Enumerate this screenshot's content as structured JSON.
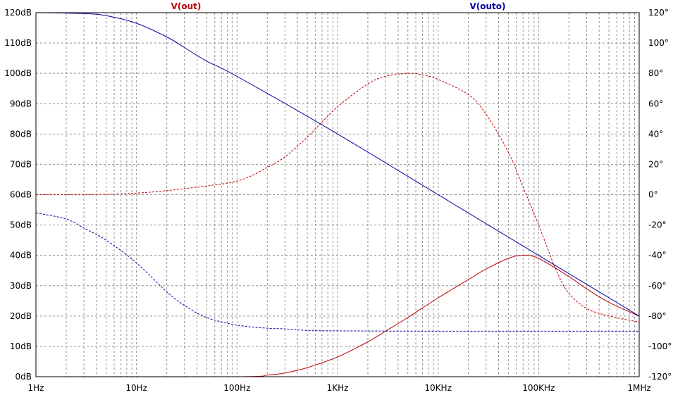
{
  "legend": [
    {
      "label": "V(out)",
      "color": "#c00000"
    },
    {
      "label": "V(outo)",
      "color": "#0000a0"
    }
  ],
  "chart_data": {
    "type": "line",
    "x_scale": "log",
    "xlim": [
      1,
      1000000
    ],
    "ylim_left": [
      0,
      120
    ],
    "ylim_right": [
      -120,
      120
    ],
    "grid": true,
    "x_tick_labels": [
      "1Hz",
      "10Hz",
      "100Hz",
      "1KHz",
      "10KHz",
      "100KHz",
      "1MHz"
    ],
    "x_tick_values": [
      1,
      10,
      100,
      1000,
      10000,
      100000,
      1000000
    ],
    "left_tick_labels": [
      "0dB",
      "10dB",
      "20dB",
      "30dB",
      "40dB",
      "50dB",
      "60dB",
      "70dB",
      "80dB",
      "90dB",
      "100dB",
      "110dB",
      "120dB"
    ],
    "left_tick_values": [
      0,
      10,
      20,
      30,
      40,
      50,
      60,
      70,
      80,
      90,
      100,
      110,
      120
    ],
    "right_tick_labels": [
      "-120°",
      "-100°",
      "-80°",
      "-60°",
      "-40°",
      "-20°",
      "0°",
      "20°",
      "40°",
      "60°",
      "80°",
      "100°",
      "120°"
    ],
    "right_tick_values": [
      -120,
      -100,
      -80,
      -60,
      -40,
      -20,
      0,
      20,
      40,
      60,
      80,
      100,
      120
    ],
    "series": [
      {
        "name": "V(out)",
        "quantity": "magnitude",
        "axis": "left",
        "unit": "dB",
        "color": "#c00000",
        "style": "solid",
        "x": [
          1,
          100,
          200,
          300,
          500,
          1000,
          2000,
          3000,
          5000,
          10000,
          20000,
          30000,
          50000,
          70000,
          100000,
          200000,
          300000,
          500000,
          1000000
        ],
        "y": [
          0,
          0,
          0.5,
          1.2,
          3,
          6.5,
          11.5,
          15,
          19.5,
          26,
          32,
          35.5,
          39,
          40,
          39,
          33,
          29,
          24.5,
          20
        ]
      },
      {
        "name": "V(out)",
        "quantity": "phase",
        "axis": "right",
        "unit": "°",
        "color": "#c00000",
        "style": "dashed",
        "x": [
          1,
          3,
          10,
          30,
          100,
          200,
          300,
          500,
          1000,
          2000,
          3000,
          5000,
          7000,
          10000,
          20000,
          30000,
          50000,
          70000,
          100000,
          150000,
          200000,
          300000,
          500000,
          1000000
        ],
        "y": [
          0,
          0,
          1,
          4,
          9,
          18,
          25,
          38,
          58,
          73,
          78,
          80,
          79,
          76,
          66,
          53,
          28,
          5,
          -20,
          -50,
          -65,
          -75,
          -80,
          -84
        ]
      },
      {
        "name": "V(outo)",
        "quantity": "magnitude",
        "axis": "left",
        "unit": "dB",
        "color": "#0000a0",
        "style": "solid",
        "x": [
          1,
          3,
          5,
          10,
          20,
          30,
          50,
          100,
          1000,
          10000,
          100000,
          1000000
        ],
        "y": [
          120,
          119.7,
          119,
          116.5,
          112,
          108.5,
          104,
          99,
          80,
          60,
          40,
          20
        ]
      },
      {
        "name": "V(outo)",
        "quantity": "phase",
        "axis": "right",
        "unit": "°",
        "color": "#0000a0",
        "style": "dashed",
        "x": [
          1,
          2,
          3,
          5,
          10,
          20,
          30,
          50,
          100,
          200,
          300,
          500,
          1000,
          10000,
          100000,
          1000000
        ],
        "y": [
          -12,
          -16,
          -22,
          -30,
          -45,
          -64,
          -73,
          -81,
          -86,
          -88,
          -88.5,
          -89.5,
          -89.8,
          -90,
          -90,
          -90
        ]
      }
    ]
  }
}
